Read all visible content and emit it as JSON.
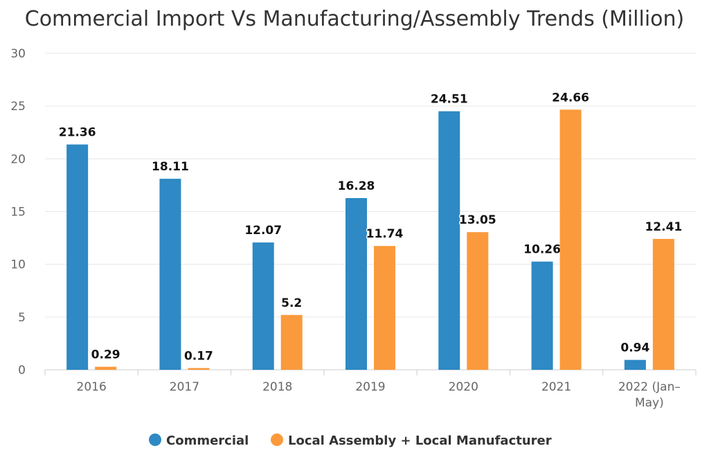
{
  "chart_data": {
    "type": "bar",
    "title": "Commercial Import Vs Manufacturing/Assembly Trends (Million)",
    "categories": [
      "2016",
      "2017",
      "2018",
      "2019",
      "2020",
      "2021",
      "2022 (Jan–May)"
    ],
    "series": [
      {
        "name": "Commercial",
        "color": "#2e89c4",
        "values": [
          21.36,
          18.11,
          12.07,
          16.28,
          24.51,
          10.26,
          0.94
        ]
      },
      {
        "name": "Local Assembly + Local Manufacturer",
        "color": "#fb9a3c",
        "values": [
          0.29,
          0.17,
          5.2,
          11.74,
          13.05,
          24.66,
          12.41
        ]
      }
    ],
    "ylim": [
      0,
      30
    ],
    "yticks": [
      0,
      5,
      10,
      15,
      20,
      25,
      30
    ],
    "grid": true,
    "legend_position": "bottom-center"
  }
}
